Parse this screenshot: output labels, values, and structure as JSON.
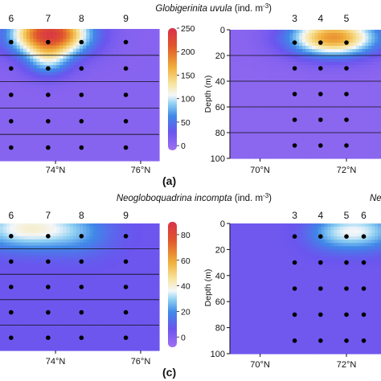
{
  "chart_data": [
    {
      "id": "a",
      "type": "heatmap",
      "panel_label": "(a)",
      "title_species": "Globigerinita uvula",
      "title_unit": "(ind. m",
      "title_unit_sup": "-3",
      "title_unit_close": ")",
      "stations": [
        "6",
        "7",
        "8",
        "9"
      ],
      "station_lat": [
        72.5,
        73.5,
        74.4,
        75.6
      ],
      "x_ticks": [
        "74°N",
        "76°N"
      ],
      "x_tick_lat": [
        73.7,
        76.0
      ],
      "xlim": [
        72.2,
        76.5
      ],
      "ylim": [
        0,
        100
      ],
      "sample_depths": [
        10,
        30,
        50,
        70,
        90
      ],
      "lines_depth": [
        20,
        40,
        60,
        80
      ],
      "colorbar": {
        "min": -10,
        "max": 250,
        "ticks": [
          "0",
          "50",
          "100",
          "150",
          "200",
          "250"
        ],
        "tick_values": [
          0,
          50,
          100,
          150,
          200,
          250
        ]
      },
      "blobs": [
        {
          "lat": 73.55,
          "depth": 4,
          "value": 240,
          "sx": 0.7,
          "sy": 11
        },
        {
          "lat": 73.5,
          "depth": 25,
          "value": 70,
          "sx": 0.4,
          "sy": 8
        }
      ],
      "background_value": 8
    },
    {
      "id": "b",
      "type": "heatmap",
      "stations": [
        "3",
        "4",
        "5"
      ],
      "station_lat": [
        70.8,
        71.4,
        72.0
      ],
      "x_ticks": [
        "70°N",
        "72°N"
      ],
      "x_tick_lat": [
        70.0,
        72.0
      ],
      "xlim": [
        69.3,
        72.8
      ],
      "ylim": [
        0,
        100
      ],
      "y_ticks": [
        "0",
        "20",
        "40",
        "60",
        "80",
        "100"
      ],
      "y_tick_values": [
        0,
        20,
        40,
        60,
        80,
        100
      ],
      "ylabel": "Depth (m)",
      "sample_depths": [
        10,
        30,
        50,
        70,
        90
      ],
      "lines_depth": [
        20,
        40,
        60,
        80
      ],
      "colorbar": {
        "min": -10,
        "max": 250
      },
      "blobs": [
        {
          "lat": 71.7,
          "depth": 6,
          "value": 180,
          "sx": 0.7,
          "sy": 10
        }
      ],
      "background_value": 5
    },
    {
      "id": "c",
      "type": "heatmap",
      "panel_label": "(c)",
      "title_species": "Neogloboquadrina incompta",
      "title_unit": "(ind. m",
      "title_unit_sup": "-3",
      "title_unit_close": ")",
      "stations": [
        "6",
        "7",
        "8",
        "9"
      ],
      "station_lat": [
        72.5,
        73.5,
        74.4,
        75.6
      ],
      "x_ticks": [
        "74°N",
        "76°N"
      ],
      "x_tick_lat": [
        73.7,
        76.0
      ],
      "xlim": [
        72.2,
        76.5
      ],
      "ylim": [
        0,
        100
      ],
      "sample_depths": [
        10,
        30,
        50,
        70,
        90
      ],
      "lines_depth": [
        20,
        40,
        60,
        80
      ],
      "colorbar": {
        "min": -8,
        "max": 90,
        "ticks": [
          "0",
          "20",
          "40",
          "60",
          "80"
        ],
        "tick_values": [
          0,
          20,
          40,
          60,
          80
        ]
      },
      "blobs": [
        {
          "lat": 73.0,
          "depth": 4,
          "value": 40,
          "sx": 1.0,
          "sy": 11
        },
        {
          "lat": 74.4,
          "depth": 10,
          "value": 14,
          "sx": 0.6,
          "sy": 12
        }
      ],
      "background_value": 6
    },
    {
      "id": "d",
      "type": "heatmap",
      "title_species": "Ne",
      "stations": [
        "3",
        "4",
        "5",
        "6"
      ],
      "station_lat": [
        70.8,
        71.4,
        72.0,
        72.4
      ],
      "x_ticks": [
        "70°N",
        "72°N"
      ],
      "x_tick_lat": [
        70.0,
        72.0
      ],
      "xlim": [
        69.3,
        72.8
      ],
      "ylim": [
        0,
        100
      ],
      "y_ticks": [
        "0",
        "20",
        "40",
        "60",
        "80",
        "100"
      ],
      "y_tick_values": [
        0,
        20,
        40,
        60,
        80,
        100
      ],
      "ylabel": "Depth (m)",
      "sample_depths": [
        10,
        30,
        50,
        70,
        90
      ],
      "lines_depth": [],
      "colorbar": {
        "min": -8,
        "max": 90
      },
      "blobs": [
        {
          "lat": 72.3,
          "depth": 6,
          "value": 34,
          "sx": 0.6,
          "sy": 10
        },
        {
          "lat": 71.6,
          "depth": 8,
          "value": 14,
          "sx": 0.4,
          "sy": 9
        }
      ],
      "background_value": 5
    }
  ]
}
